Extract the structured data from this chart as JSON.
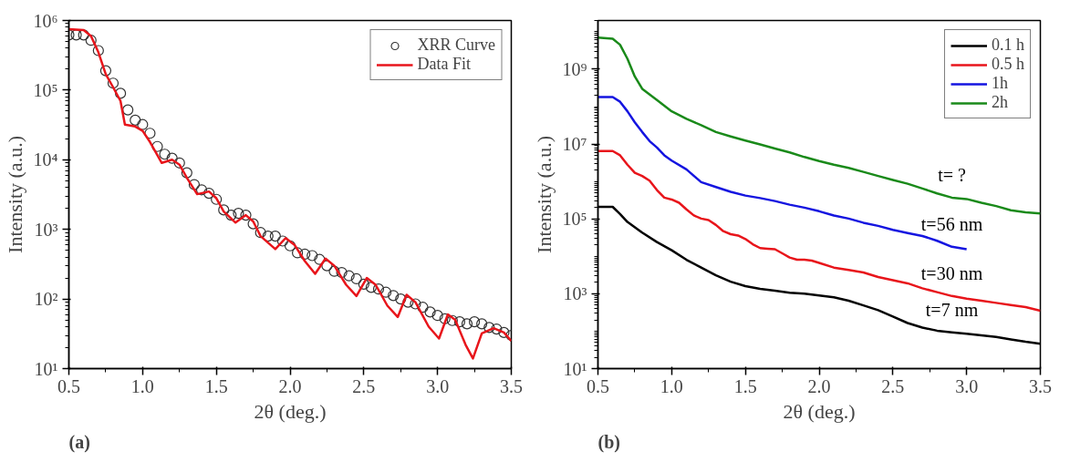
{
  "chart_data": [
    {
      "type": "line",
      "xlabel": "2θ (deg.)",
      "ylabel": "Intensity (a.u.)",
      "log": "y",
      "grid": false,
      "legend": "top right",
      "xlim": [
        0.5,
        3.5
      ],
      "xticks": [
        0.5,
        {
          "value": 1,
          "label": "1.0"
        },
        1.5,
        {
          "value": 2,
          "label": "2.0"
        },
        2.5,
        {
          "value": 3,
          "label": "3.0"
        },
        3.5
      ],
      "ylim": [
        10,
        1000000
      ],
      "yticks": [
        {
          "value": 10,
          "label": "10¹"
        },
        {
          "value": 100,
          "label": "10²"
        },
        {
          "value": 1000,
          "label": "10³"
        },
        {
          "value": 10000,
          "label": "10⁴"
        },
        {
          "value": 100000,
          "label": "10⁵"
        },
        {
          "value": 1000000,
          "label": "10⁶"
        }
      ],
      "annotations": [
        "(a)"
      ],
      "series": [
        {
          "name": "XRR Curve",
          "type": "scatter",
          "marker": "circle",
          "color": "#333333",
          "x": [
            0.5,
            0.55,
            0.6,
            0.65,
            0.7,
            0.75,
            0.8,
            0.85,
            0.9,
            0.95,
            1.0,
            1.05,
            1.1,
            1.15,
            1.2,
            1.25,
            1.3,
            1.35,
            1.4,
            1.45,
            1.5,
            1.55,
            1.6,
            1.65,
            1.7,
            1.75,
            1.8,
            1.85,
            1.9,
            1.95,
            2.0,
            2.05,
            2.1,
            2.15,
            2.2,
            2.25,
            2.3,
            2.35,
            2.4,
            2.45,
            2.5,
            2.55,
            2.6,
            2.65,
            2.7,
            2.75,
            2.8,
            2.85,
            2.9,
            2.95,
            3.0,
            3.05,
            3.1,
            3.15,
            3.2,
            3.25,
            3.3,
            3.35,
            3.4,
            3.45,
            3.5
          ],
          "values": [
            620000,
            620000,
            620000,
            520000,
            370000,
            190000,
            126000,
            90000,
            52000,
            37000,
            32000,
            24000,
            15500,
            12000,
            10500,
            9000,
            6500,
            4400,
            3700,
            3300,
            2700,
            1900,
            1600,
            1700,
            1600,
            1200,
            900,
            800,
            800,
            680,
            580,
            460,
            440,
            420,
            370,
            300,
            250,
            240,
            215,
            195,
            163,
            147,
            139,
            125,
            112,
            100,
            90,
            85,
            76,
            65,
            58,
            52,
            49,
            47,
            44,
            47,
            44,
            39,
            37,
            33,
            30
          ]
        },
        {
          "name": "Data Fit",
          "type": "line",
          "color": "#e8151b",
          "x": [
            0.5,
            0.6,
            0.65,
            0.7,
            0.75,
            0.8,
            0.85,
            0.88,
            0.95,
            1.0,
            1.05,
            1.13,
            1.2,
            1.25,
            1.3,
            1.37,
            1.45,
            1.5,
            1.55,
            1.63,
            1.7,
            1.75,
            1.8,
            1.9,
            1.97,
            2.03,
            2.1,
            2.17,
            2.24,
            2.3,
            2.38,
            2.45,
            2.52,
            2.58,
            2.66,
            2.73,
            2.79,
            2.85,
            2.94,
            3.01,
            3.07,
            3.12,
            3.19,
            3.24,
            3.3,
            3.38,
            3.45,
            3.5
          ],
          "values": [
            750000,
            730000,
            600000,
            350000,
            170000,
            110000,
            70000,
            32000,
            30000,
            26000,
            18000,
            9000,
            10000,
            8500,
            5500,
            3200,
            3500,
            2800,
            1800,
            1250,
            1600,
            1300,
            800,
            520,
            750,
            600,
            350,
            230,
            380,
            300,
            160,
            110,
            200,
            160,
            80,
            55,
            115,
            90,
            40,
            27,
            60,
            50,
            22,
            14,
            32,
            38,
            33,
            25
          ]
        }
      ]
    },
    {
      "type": "line",
      "xlabel": "2θ (deg.)",
      "ylabel": "Intensity (a.u.)",
      "log": "y",
      "grid": false,
      "legend": "top right",
      "xlim": [
        0.5,
        3.5
      ],
      "xticks": [
        0.5,
        {
          "value": 1,
          "label": "1.0"
        },
        1.5,
        {
          "value": 2,
          "label": "2.0"
        },
        2.5,
        {
          "value": 3,
          "label": "3.0"
        },
        3.5
      ],
      "ylim": [
        10,
        20000000000
      ],
      "yticks": [
        {
          "value": 10,
          "label": "10¹"
        },
        {
          "value": 1000,
          "label": "10³"
        },
        {
          "value": 100000,
          "label": "10⁵"
        },
        {
          "value": 10000000,
          "label": "10⁷"
        },
        {
          "value": 1000000000,
          "label": "10⁹"
        }
      ],
      "annotations": [
        "t= ?",
        "t=56 nm",
        "t=30 nm",
        "t=7 nm",
        "(b)"
      ],
      "series": [
        {
          "name": "0.1 h",
          "color": "#000000",
          "x": [
            0.5,
            0.6,
            0.65,
            0.7,
            0.8,
            0.9,
            1.0,
            1.1,
            1.2,
            1.3,
            1.4,
            1.5,
            1.6,
            1.7,
            1.8,
            1.9,
            2.0,
            2.1,
            2.2,
            2.3,
            2.4,
            2.5,
            2.6,
            2.7,
            2.8,
            2.9,
            3.0,
            3.1,
            3.2,
            3.3,
            3.4,
            3.5
          ],
          "values": [
            210000,
            210000,
            135000,
            83000,
            43000,
            24000,
            14500,
            8100,
            5000,
            3100,
            2100,
            1600,
            1350,
            1200,
            1070,
            1000,
            900,
            800,
            650,
            490,
            365,
            245,
            165,
            125,
            103,
            93,
            85,
            77,
            70,
            60,
            52,
            46
          ]
        },
        {
          "name": "0.5 h",
          "color": "#e8151b",
          "x": [
            0.5,
            0.6,
            0.65,
            0.7,
            0.75,
            0.8,
            0.85,
            0.9,
            0.95,
            1.0,
            1.05,
            1.1,
            1.15,
            1.2,
            1.25,
            1.3,
            1.35,
            1.4,
            1.45,
            1.5,
            1.55,
            1.6,
            1.65,
            1.7,
            1.75,
            1.8,
            1.85,
            1.9,
            1.95,
            2.0,
            2.1,
            2.2,
            2.3,
            2.4,
            2.5,
            2.6,
            2.7,
            2.8,
            2.9,
            3.0,
            3.1,
            3.2,
            3.3,
            3.4,
            3.5
          ],
          "values": [
            6500000,
            6500000,
            5000000,
            2800000,
            1700000,
            1400000,
            1050000,
            590000,
            370000,
            330000,
            270000,
            180000,
            124000,
            102000,
            93000,
            69000,
            47000,
            39000,
            36000,
            29000,
            21000,
            16600,
            16000,
            15500,
            12000,
            9300,
            8100,
            8100,
            7700,
            6700,
            5000,
            4300,
            3700,
            2800,
            2300,
            1900,
            1400,
            1100,
            870,
            740,
            650,
            570,
            500,
            440,
            350
          ]
        },
        {
          "name": "1h",
          "color": "#1515e0",
          "x": [
            0.5,
            0.6,
            0.65,
            0.7,
            0.75,
            0.8,
            0.85,
            0.9,
            0.95,
            1.0,
            1.1,
            1.2,
            1.3,
            1.4,
            1.5,
            1.6,
            1.7,
            1.8,
            1.9,
            2.0,
            2.1,
            2.2,
            2.3,
            2.4,
            2.5,
            2.6,
            2.7,
            2.8,
            2.9,
            3.0
          ],
          "values": [
            180000000,
            180000000,
            135000000,
            75000000,
            38000000,
            21000000,
            12000000,
            8100000,
            5000000,
            3600000,
            2100000,
            960000,
            710000,
            530000,
            420000,
            360000,
            300000,
            240000,
            200000,
            160000,
            123000,
            102000,
            79000,
            65000,
            51000,
            42000,
            35000,
            26000,
            18000,
            15500
          ]
        },
        {
          "name": "2h",
          "color": "#1a8a1a",
          "x": [
            0.5,
            0.6,
            0.65,
            0.7,
            0.75,
            0.8,
            0.9,
            1.0,
            1.1,
            1.2,
            1.3,
            1.4,
            1.5,
            1.6,
            1.7,
            1.8,
            1.9,
            2.0,
            2.1,
            2.2,
            2.3,
            2.4,
            2.5,
            2.6,
            2.7,
            2.8,
            2.9,
            3.0,
            3.1,
            3.2,
            3.3,
            3.4,
            3.5
          ],
          "values": [
            7000000000,
            6500000000,
            4500000000,
            1900000000,
            640000000,
            300000000,
            150000000,
            75000000,
            47000000,
            32000000,
            21000000,
            16000000,
            12400000,
            9800000,
            7600000,
            6000000,
            4500000,
            3500000,
            2800000,
            2300000,
            1800000,
            1400000,
            1100000,
            870000,
            650000,
            480000,
            370000,
            340000,
            270000,
            220000,
            170000,
            150000,
            140000
          ]
        }
      ]
    }
  ]
}
